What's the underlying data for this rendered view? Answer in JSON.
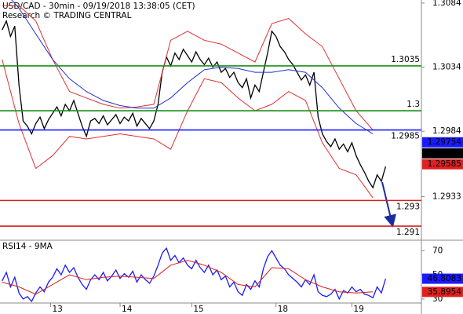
{
  "chart_data": [
    {
      "type": "line",
      "title": "USD/CAD - 30min - 09/19/2018 13:38:05 (CET)",
      "subtitle": "Research © TRADING CENTRAL",
      "xlim": [
        -0.5,
        99.5
      ],
      "ylim": [
        1.2899,
        1.30864
      ],
      "yticks": [
        1.3084,
        1.3034,
        1.2984,
        1.2933
      ],
      "series": [
        {
          "color": "#000000",
          "x": [
            0,
            1,
            2,
            3,
            4,
            5,
            6,
            7,
            8,
            9,
            10,
            11,
            12,
            13,
            14,
            15,
            16,
            17,
            18,
            19,
            20,
            21,
            22,
            23,
            24,
            25,
            26,
            27,
            28,
            29,
            30,
            31,
            32,
            33,
            34,
            35,
            36,
            37,
            38,
            39,
            40,
            41,
            42,
            43,
            44,
            45,
            46,
            47,
            48,
            49,
            50,
            51,
            52,
            53,
            54,
            55,
            56,
            57,
            58,
            59,
            60,
            61,
            62,
            63,
            64,
            65,
            66,
            67,
            68,
            69,
            70,
            71,
            72,
            73,
            74,
            75,
            76,
            77,
            78,
            79,
            80,
            81,
            82,
            83,
            84,
            85,
            86,
            87,
            88,
            89,
            90,
            91
          ],
          "values": [
            1.3063,
            1.307,
            1.3058,
            1.3066,
            1.302,
            1.2992,
            1.2988,
            1.2982,
            1.299,
            1.2995,
            1.2986,
            1.2993,
            1.2998,
            1.3003,
            1.2996,
            1.3005,
            1.3,
            1.3008,
            1.2998,
            1.2988,
            1.298,
            1.2992,
            1.2994,
            1.299,
            1.2996,
            1.2989,
            1.2993,
            1.2997,
            1.299,
            1.2995,
            1.2992,
            1.2998,
            1.2988,
            1.2994,
            1.299,
            1.2986,
            1.2992,
            1.3005,
            1.303,
            1.3042,
            1.3035,
            1.3045,
            1.304,
            1.3048,
            1.3043,
            1.3038,
            1.3046,
            1.304,
            1.3036,
            1.3041,
            1.3034,
            1.3038,
            1.303,
            1.3033,
            1.3026,
            1.303,
            1.3022,
            1.3018,
            1.3025,
            1.301,
            1.302,
            1.3015,
            1.303,
            1.3045,
            1.3062,
            1.3058,
            1.305,
            1.3046,
            1.304,
            1.3036,
            1.303,
            1.3024,
            1.3028,
            1.302,
            1.303,
            1.2995,
            1.2982,
            1.2976,
            1.2972,
            1.2978,
            1.297,
            1.2974,
            1.2968,
            1.2975,
            1.2965,
            1.2958,
            1.2952,
            1.2945,
            1.294,
            1.295,
            1.2945,
            1.29565
          ]
        },
        {
          "color": "#e03030",
          "x": [
            0,
            4,
            8,
            12,
            16,
            20,
            24,
            28,
            32,
            36,
            40,
            44,
            48,
            52,
            56,
            60,
            64,
            68,
            72,
            76,
            80,
            84,
            88
          ],
          "values": [
            1.3082,
            1.3082,
            1.307,
            1.304,
            1.3015,
            1.301,
            1.3005,
            1.3002,
            1.3003,
            1.3005,
            1.3055,
            1.3062,
            1.3055,
            1.3052,
            1.3045,
            1.3038,
            1.3068,
            1.3072,
            1.306,
            1.305,
            1.3025,
            1.3,
            1.2985
          ]
        },
        {
          "color": "#e03030",
          "x": [
            0,
            4,
            8,
            12,
            16,
            20,
            24,
            28,
            32,
            36,
            40,
            44,
            48,
            52,
            56,
            60,
            64,
            68,
            72,
            76,
            80,
            84,
            88
          ],
          "values": [
            1.304,
            1.299,
            1.2955,
            1.2965,
            1.298,
            1.2978,
            1.298,
            1.2982,
            1.298,
            1.2978,
            1.297,
            1.3,
            1.3025,
            1.3022,
            1.301,
            1.3,
            1.3005,
            1.3015,
            1.3008,
            1.2975,
            1.2955,
            1.295,
            1.2932
          ]
        },
        {
          "color": "#2030d0",
          "x": [
            0,
            4,
            8,
            12,
            16,
            20,
            24,
            28,
            32,
            36,
            40,
            44,
            48,
            52,
            56,
            60,
            64,
            68,
            72,
            76,
            80,
            84,
            88
          ],
          "values": [
            1.3095,
            1.308,
            1.306,
            1.304,
            1.3025,
            1.3015,
            1.3008,
            1.3004,
            1.3002,
            1.3002,
            1.301,
            1.3022,
            1.3032,
            1.3034,
            1.3033,
            1.303,
            1.303,
            1.3032,
            1.303,
            1.3018,
            1.3002,
            1.299,
            1.2982
          ]
        }
      ],
      "levels": [
        {
          "value": 1.3035,
          "color": "#1a8f1a"
        },
        {
          "value": 1.3,
          "color": "#1a8f1a"
        },
        {
          "value": 1.2985,
          "color": "#1a1aff"
        },
        {
          "value": 1.293,
          "color": "#d62020"
        },
        {
          "value": 1.291,
          "color": "#d62020"
        }
      ],
      "last_values": [
        {
          "value": 1.29754,
          "color": "#1a1aff"
        },
        {
          "value": 1.29565,
          "color": "#000000"
        },
        {
          "value": 1.29585,
          "color": "#e02020"
        }
      ]
    },
    {
      "type": "line",
      "title": "RSI14 - 9MA",
      "xlim": [
        -0.5,
        99.5
      ],
      "ylim": [
        26.7,
        78
      ],
      "yticks": [
        70,
        50,
        30
      ],
      "xticks": [
        {
          "value": 11.5,
          "label": "13"
        },
        {
          "value": 28,
          "label": "14"
        },
        {
          "value": 45,
          "label": "15"
        },
        {
          "value": 65,
          "label": "18"
        },
        {
          "value": 83,
          "label": "19"
        }
      ],
      "series": [
        {
          "color": "#1a1aff",
          "x": [
            0,
            1,
            2,
            3,
            4,
            5,
            6,
            7,
            8,
            9,
            10,
            11,
            12,
            13,
            14,
            15,
            16,
            17,
            18,
            19,
            20,
            21,
            22,
            23,
            24,
            25,
            26,
            27,
            28,
            29,
            30,
            31,
            32,
            33,
            34,
            35,
            36,
            37,
            38,
            39,
            40,
            41,
            42,
            43,
            44,
            45,
            46,
            47,
            48,
            49,
            50,
            51,
            52,
            53,
            54,
            55,
            56,
            57,
            58,
            59,
            60,
            61,
            62,
            63,
            64,
            65,
            66,
            67,
            68,
            69,
            70,
            71,
            72,
            73,
            74,
            75,
            76,
            77,
            78,
            79,
            80,
            81,
            82,
            83,
            84,
            85,
            86,
            87,
            88,
            89,
            90,
            91
          ],
          "values": [
            45,
            52,
            40,
            48,
            35,
            30,
            32,
            28,
            35,
            40,
            36,
            44,
            48,
            55,
            50,
            58,
            52,
            56,
            48,
            42,
            38,
            46,
            50,
            46,
            52,
            45,
            49,
            54,
            47,
            51,
            48,
            53,
            44,
            50,
            46,
            43,
            49,
            58,
            68,
            72,
            62,
            66,
            60,
            64,
            58,
            55,
            62,
            56,
            52,
            58,
            50,
            54,
            46,
            49,
            40,
            44,
            36,
            33,
            42,
            38,
            45,
            40,
            55,
            65,
            70,
            64,
            58,
            55,
            50,
            47,
            44,
            40,
            46,
            42,
            50,
            36,
            33,
            32,
            34,
            38,
            30,
            37,
            35,
            40,
            36,
            38,
            34,
            33,
            31,
            40,
            35,
            46.8083
          ]
        },
        {
          "color": "#d62020",
          "x": [
            0,
            4,
            8,
            12,
            16,
            20,
            24,
            28,
            32,
            36,
            40,
            44,
            48,
            52,
            56,
            60,
            64,
            68,
            72,
            76,
            80,
            84,
            88
          ],
          "values": [
            44,
            40,
            34,
            42,
            50,
            46,
            48,
            49,
            48,
            47,
            58,
            62,
            58,
            52,
            42,
            40,
            56,
            55,
            46,
            40,
            36,
            35,
            35.8954
          ]
        }
      ],
      "last_values": [
        {
          "value": 46.8083,
          "color": "#1a1aff"
        },
        {
          "value": 35.8954,
          "color": "#e02020"
        }
      ]
    }
  ]
}
